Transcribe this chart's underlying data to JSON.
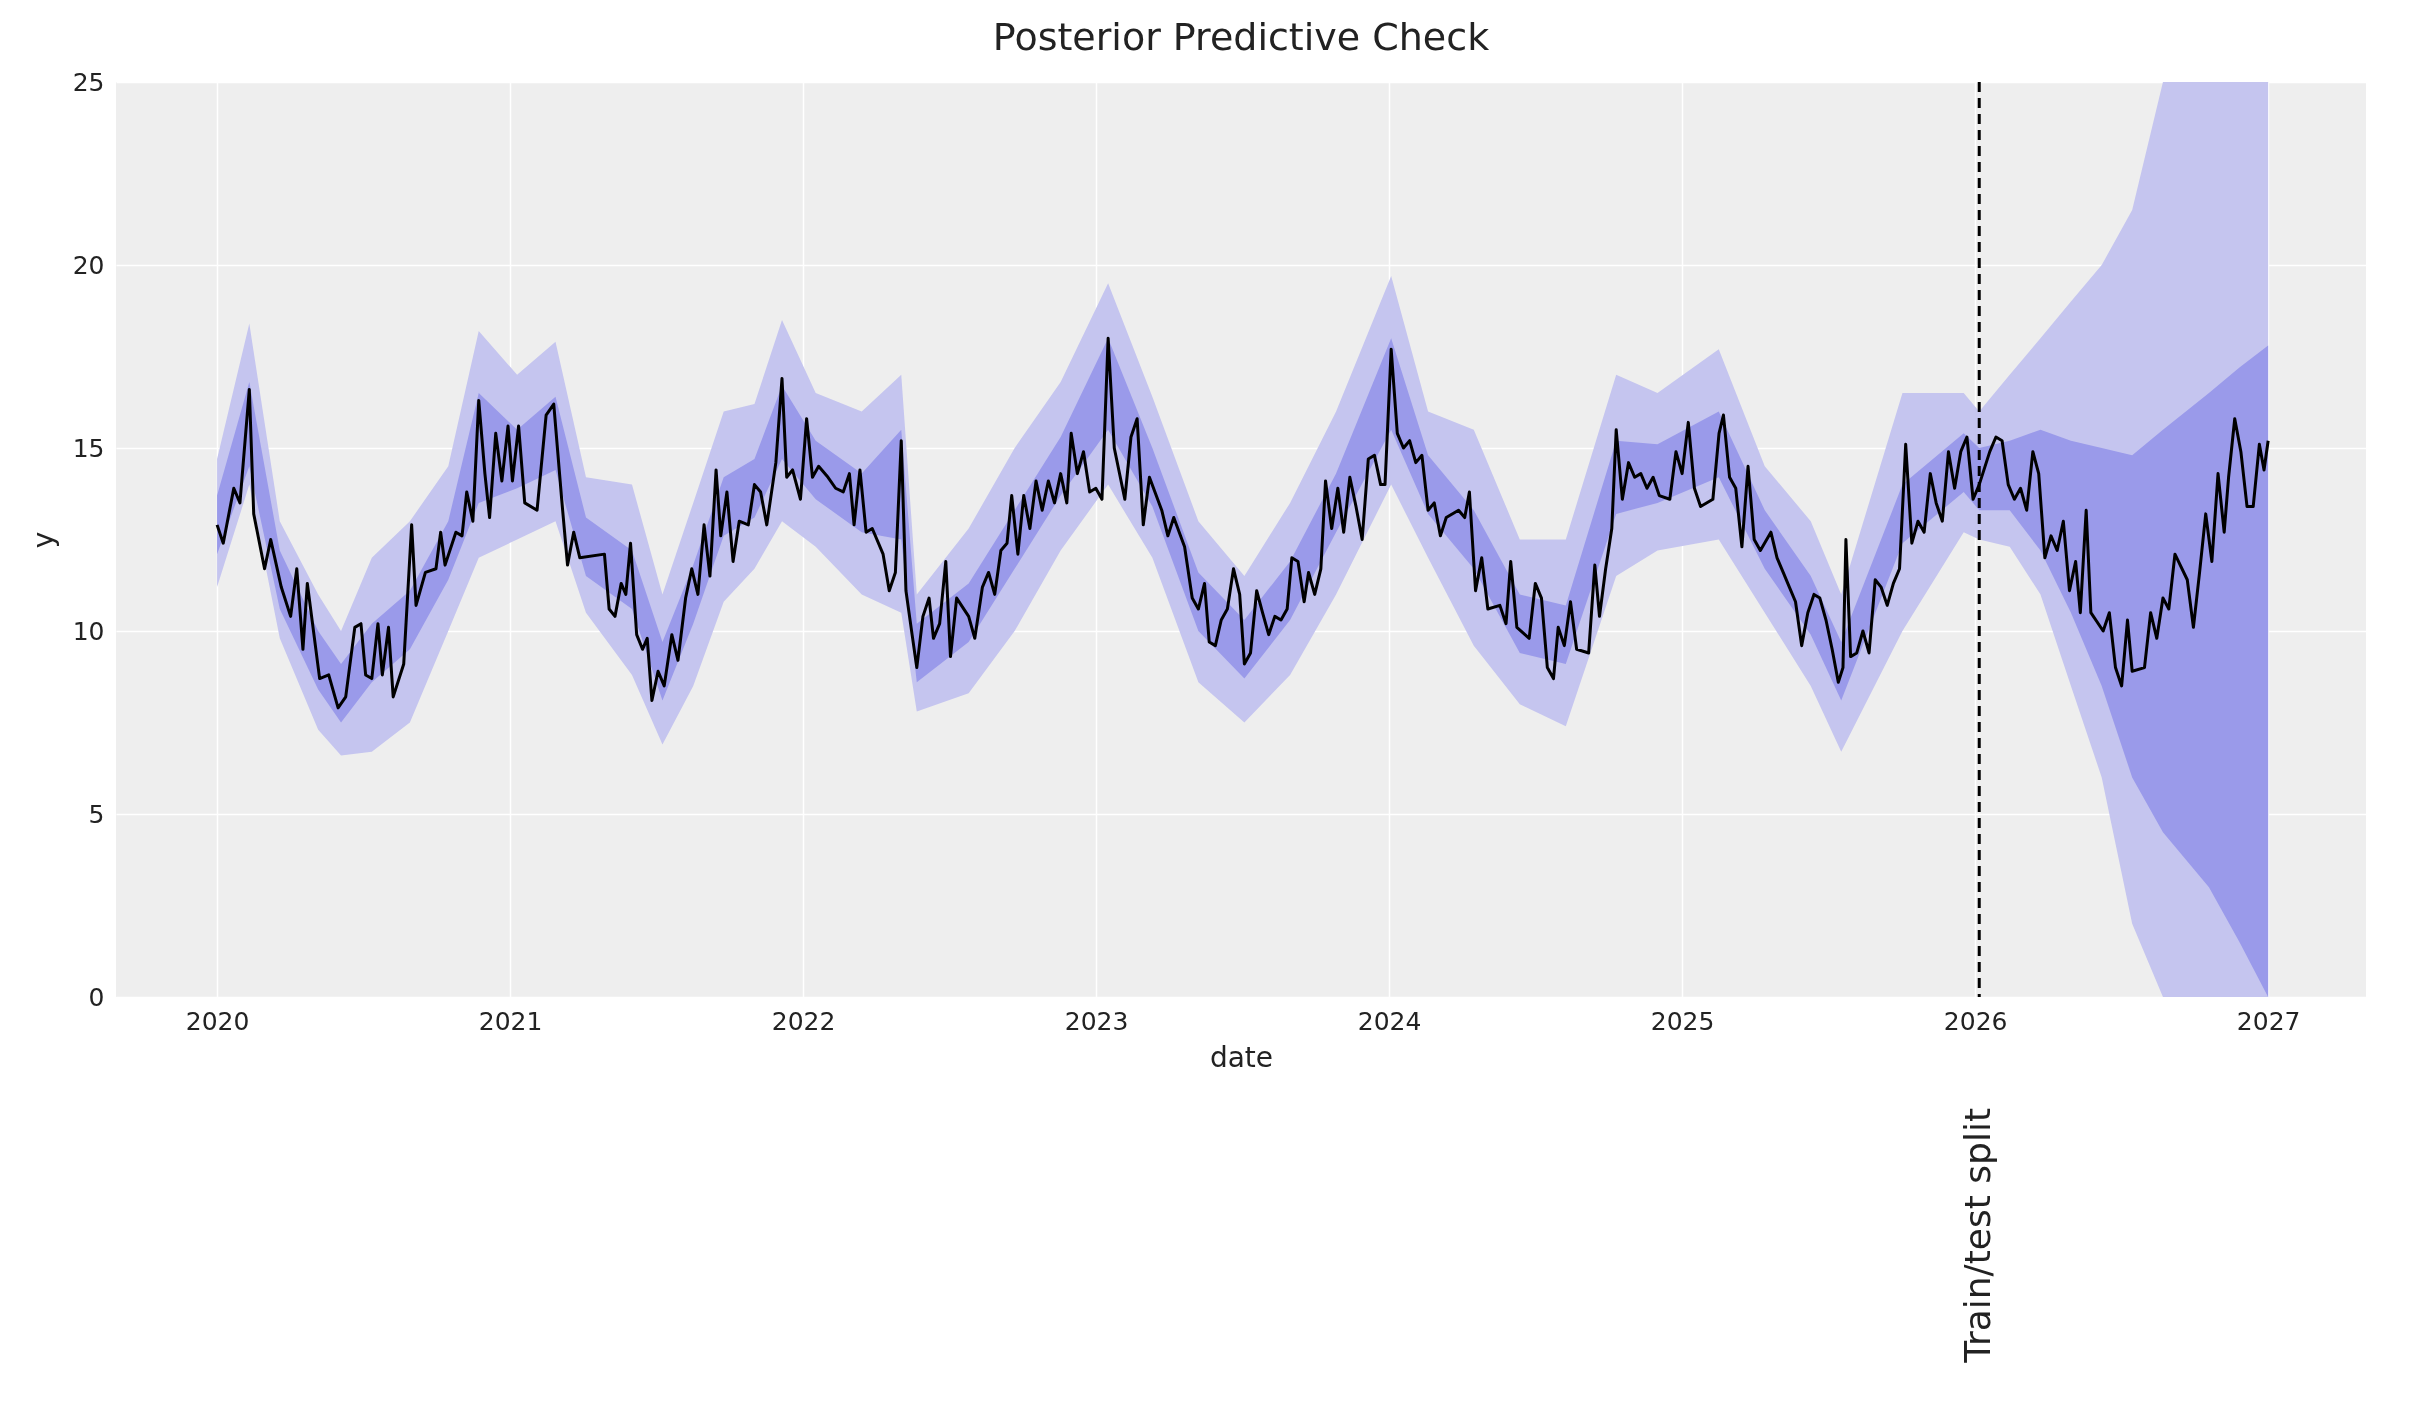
{
  "chart_data": {
    "type": "line",
    "title": "Posterior Predictive Check",
    "xlabel": "date",
    "ylabel": "y",
    "xlim": [
      2019.655,
      2027.334
    ],
    "ylim": [
      0,
      25
    ],
    "xticks": [
      2020,
      2021,
      2022,
      2023,
      2024,
      2025,
      2026,
      2027
    ],
    "yticks": [
      0,
      5,
      10,
      15,
      20,
      25
    ],
    "grid": true,
    "ref_lines": [
      {
        "axis": "x",
        "value": 2026.014,
        "label": "Train/test split",
        "color": "#000000",
        "line_style": "dashed"
      }
    ],
    "series": [
      {
        "type": "area",
        "color": "#c5c5ef",
        "x": [
          2020.0,
          2020.11,
          2020.214,
          2020.345,
          2020.423,
          2020.528,
          2020.658,
          2020.789,
          2020.893,
          2021.024,
          2021.155,
          2021.259,
          2021.416,
          2021.52,
          2021.625,
          2021.729,
          2021.834,
          2021.928,
          2022.043,
          2022.2,
          2022.335,
          2022.388,
          2022.565,
          2022.722,
          2022.879,
          2023.041,
          2023.192,
          2023.349,
          2023.506,
          2023.662,
          2023.819,
          2024.007,
          2024.133,
          2024.289,
          2024.446,
          2024.603,
          2024.775,
          2024.916,
          2025.125,
          2025.282,
          2025.439,
          2025.543,
          2025.752,
          2025.961,
          2026.014,
          2026.118,
          2026.223,
          2026.327,
          2026.432,
          2026.536,
          2026.641,
          2026.798,
          2026.902,
          2027.0
        ],
        "lower": [
          11.2,
          14.0,
          9.8,
          7.3,
          6.6,
          6.7,
          7.5,
          10.0,
          12.0,
          12.5,
          13.0,
          10.5,
          8.8,
          6.9,
          8.5,
          10.8,
          11.7,
          13.0,
          12.3,
          11.0,
          10.5,
          7.8,
          8.3,
          10.0,
          12.2,
          14.0,
          12.0,
          8.6,
          7.5,
          8.8,
          11.0,
          14.0,
          12.0,
          9.6,
          8.0,
          7.4,
          11.5,
          12.2,
          12.5,
          10.5,
          8.5,
          6.7,
          10.0,
          12.7,
          12.5,
          12.3,
          11.0,
          8.5,
          6.0,
          2.0,
          0,
          0,
          0,
          0
        ],
        "values": [
          null,
          null,
          null,
          null,
          null,
          null,
          null,
          null,
          null,
          null,
          null,
          null,
          null,
          null,
          null,
          null,
          null,
          null,
          null,
          null,
          null,
          null,
          null,
          null,
          null,
          null,
          null,
          null,
          null,
          null,
          null,
          null,
          null,
          null,
          null,
          null,
          null,
          null,
          null,
          null,
          null,
          null,
          null,
          null,
          null,
          null,
          null,
          null,
          null,
          null,
          null,
          null,
          null,
          null
        ],
        "upper": [
          14.7,
          18.4,
          13.0,
          11.0,
          10.0,
          12.0,
          13.0,
          14.5,
          18.2,
          17.0,
          17.9,
          14.2,
          14.0,
          11.0,
          13.5,
          16.0,
          16.2,
          18.5,
          16.5,
          16.0,
          17.0,
          11.0,
          12.8,
          15.0,
          16.8,
          19.5,
          16.4,
          13.0,
          11.5,
          13.5,
          16.0,
          19.7,
          16.0,
          15.5,
          12.5,
          12.5,
          17.0,
          16.5,
          17.7,
          14.5,
          13.0,
          11.0,
          16.5,
          16.5,
          16.0,
          17.0,
          18.0,
          19.0,
          20.0,
          21.5,
          25,
          25,
          25,
          25
        ]
      },
      {
        "type": "area",
        "color": "#9a9aea",
        "x": [
          2020.0,
          2020.11,
          2020.214,
          2020.345,
          2020.423,
          2020.528,
          2020.658,
          2020.789,
          2020.893,
          2021.024,
          2021.155,
          2021.259,
          2021.416,
          2021.52,
          2021.625,
          2021.729,
          2021.834,
          2021.928,
          2022.043,
          2022.2,
          2022.335,
          2022.388,
          2022.565,
          2022.722,
          2022.879,
          2023.041,
          2023.192,
          2023.349,
          2023.506,
          2023.662,
          2023.819,
          2024.007,
          2024.133,
          2024.289,
          2024.446,
          2024.603,
          2024.775,
          2024.916,
          2025.125,
          2025.282,
          2025.439,
          2025.543,
          2025.752,
          2025.961,
          2026.014,
          2026.118,
          2026.223,
          2026.327,
          2026.432,
          2026.536,
          2026.641,
          2026.798,
          2026.902,
          2027.0
        ],
        "lower": [
          12.1,
          14.5,
          10.6,
          8.4,
          7.5,
          8.6,
          9.5,
          11.4,
          13.5,
          13.9,
          14.4,
          11.5,
          10.6,
          8.1,
          10.2,
          12.6,
          13.1,
          14.7,
          13.6,
          12.7,
          12.5,
          8.6,
          9.7,
          11.7,
          13.7,
          15.5,
          13.4,
          10.0,
          8.7,
          10.3,
          12.7,
          15.5,
          13.2,
          11.7,
          9.4,
          9.1,
          13.2,
          13.5,
          14.2,
          11.7,
          9.9,
          8.1,
          12.4,
          13.8,
          13.3,
          13.3,
          12.2,
          10.5,
          8.5,
          6.0,
          4.5,
          3.0,
          1.5,
          0
        ],
        "values": [
          null,
          null,
          null,
          null,
          null,
          null,
          null,
          null,
          null,
          null,
          null,
          null,
          null,
          null,
          null,
          null,
          null,
          null,
          null,
          null,
          null,
          null,
          null,
          null,
          null,
          null,
          null,
          null,
          null,
          null,
          null,
          null,
          null,
          null,
          null,
          null,
          null,
          null,
          null,
          null,
          null,
          null,
          null,
          null,
          null,
          null,
          null,
          null,
          null,
          null,
          null,
          null,
          null,
          null
        ],
        "upper": [
          13.7,
          16.8,
          12.2,
          10.0,
          9.1,
          10.2,
          11.1,
          13.0,
          16.5,
          15.5,
          16.4,
          13.1,
          12.2,
          9.7,
          11.8,
          14.2,
          14.7,
          16.7,
          15.2,
          14.3,
          15.5,
          10.2,
          11.3,
          13.3,
          15.3,
          18.0,
          15.0,
          11.6,
          10.3,
          11.9,
          14.3,
          18.0,
          14.8,
          13.3,
          11.0,
          10.7,
          15.2,
          15.1,
          16.0,
          13.3,
          11.5,
          9.7,
          14.0,
          15.4,
          15.0,
          15.2,
          15.5,
          15.2,
          15.0,
          14.8,
          15.5,
          16.5,
          17.2,
          17.8
        ]
      },
      {
        "type": "line",
        "color": "#000000",
        "x": [
          2020.0,
          2020.021,
          2020.057,
          2020.078,
          2020.11,
          2020.125,
          2020.162,
          2020.183,
          2020.219,
          2020.251,
          2020.272,
          2020.293,
          2020.308,
          2020.35,
          2020.381,
          2020.413,
          2020.439,
          2020.47,
          2020.491,
          2020.507,
          2020.528,
          2020.549,
          2020.564,
          2020.585,
          2020.601,
          2020.637,
          2020.664,
          2020.679,
          2020.711,
          2020.747,
          2020.763,
          2020.778,
          2020.815,
          2020.836,
          2020.852,
          2020.873,
          2020.893,
          2020.914,
          2020.93,
          2020.951,
          2020.972,
          2020.993,
          2021.008,
          2021.029,
          2021.05,
          2021.092,
          2021.123,
          2021.149,
          2021.176,
          2021.196,
          2021.217,
          2021.238,
          2021.322,
          2021.338,
          2021.358,
          2021.379,
          2021.395,
          2021.411,
          2021.432,
          2021.452,
          2021.468,
          2021.484,
          2021.505,
          2021.526,
          2021.552,
          2021.573,
          2021.599,
          2021.62,
          2021.641,
          2021.662,
          2021.682,
          2021.703,
          2021.719,
          2021.74,
          2021.761,
          2021.782,
          2021.813,
          2021.834,
          2021.855,
          2021.876,
          2021.907,
          2021.928,
          2021.944,
          2021.964,
          2021.991,
          2022.012,
          2022.032,
          2022.053,
          2022.085,
          2022.111,
          2022.137,
          2022.158,
          2022.174,
          2022.194,
          2022.215,
          2022.236,
          2022.273,
          2022.294,
          2022.315,
          2022.335,
          2022.351,
          2022.372,
          2022.388,
          2022.409,
          2022.43,
          2022.445,
          2022.466,
          2022.487,
          2022.503,
          2022.524,
          2022.565,
          2022.586,
          2022.612,
          2022.633,
          2022.654,
          2022.675,
          2022.696,
          2022.712,
          2022.733,
          2022.753,
          2022.774,
          2022.795,
          2022.816,
          2022.837,
          2022.858,
          2022.879,
          2022.9,
          2022.915,
          2022.936,
          2022.957,
          2022.978,
          2022.999,
          2023.02,
          2023.041,
          2023.062,
          2023.098,
          2023.119,
          2023.14,
          2023.161,
          2023.182,
          2023.224,
          2023.245,
          2023.265,
          2023.302,
          2023.328,
          2023.349,
          2023.37,
          2023.386,
          2023.407,
          2023.427,
          2023.448,
          2023.469,
          2023.49,
          2023.506,
          2023.527,
          2023.548,
          2023.568,
          2023.589,
          2023.61,
          2023.631,
          2023.652,
          2023.668,
          2023.689,
          2023.71,
          2023.725,
          2023.746,
          2023.767,
          2023.783,
          2023.804,
          2023.825,
          2023.845,
          2023.866,
          2023.887,
          2023.908,
          2023.929,
          2023.95,
          2023.971,
          2023.986,
          2024.007,
          2024.028,
          2024.049,
          2024.07,
          2024.091,
          2024.112,
          2024.133,
          2024.154,
          2024.175,
          2024.195,
          2024.237,
          2024.258,
          2024.274,
          2024.295,
          2024.316,
          2024.337,
          2024.378,
          2024.399,
          2024.415,
          2024.436,
          2024.478,
          2024.499,
          2024.52,
          2024.54,
          2024.561,
          2024.577,
          2024.598,
          2024.619,
          2024.64,
          2024.681,
          2024.702,
          2024.718,
          2024.739,
          2024.76,
          2024.775,
          2024.796,
          2024.817,
          2024.838,
          2024.859,
          2024.88,
          2024.901,
          2024.922,
          2024.958,
          2024.979,
          2025.0,
          2025.021,
          2025.042,
          2025.063,
          2025.105,
          2025.126,
          2025.141,
          2025.162,
          2025.183,
          2025.204,
          2025.225,
          2025.246,
          2025.267,
          2025.303,
          2025.324,
          2025.345,
          2025.366,
          2025.387,
          2025.408,
          2025.429,
          2025.45,
          2025.47,
          2025.491,
          2025.512,
          2025.533,
          2025.549,
          2025.559,
          2025.575,
          2025.596,
          2025.617,
          2025.638,
          2025.659,
          2025.679,
          2025.7,
          2025.721,
          2025.742,
          2025.763,
          2025.784,
          2025.805,
          2025.826,
          2025.847,
          2025.867,
          2025.888,
          2025.909,
          2025.93,
          2025.951,
          2025.972,
          2025.993,
          2026.014,
          2026.05,
          2026.071,
          2026.092,
          2026.113,
          2026.134,
          2026.155,
          2026.176,
          2026.197,
          2026.217,
          2026.238,
          2026.259,
          2026.28,
          2026.301,
          2026.322,
          2026.343,
          2026.359,
          2026.379,
          2026.395,
          2026.437,
          2026.458,
          2026.479,
          2026.5,
          2026.52,
          2026.536,
          2026.578,
          2026.599,
          2026.62,
          2026.641,
          2026.661,
          2026.682,
          2026.724,
          2026.745,
          2026.766,
          2026.787,
          2026.808,
          2026.829,
          2026.85,
          2026.865,
          2026.886,
          2026.907,
          2026.928,
          2026.949,
          2026.97,
          2026.986,
          2027.0
        ],
        "values": [
          12.9,
          12.4,
          13.9,
          13.5,
          16.6,
          13.2,
          11.7,
          12.5,
          11.2,
          10.4,
          11.7,
          9.5,
          11.3,
          8.7,
          8.8,
          7.9,
          8.2,
          10.1,
          10.2,
          8.8,
          8.7,
          10.2,
          8.8,
          10.1,
          8.2,
          9.1,
          12.9,
          10.7,
          11.6,
          11.7,
          12.7,
          11.8,
          12.7,
          12.6,
          13.8,
          13.0,
          16.3,
          14.3,
          13.1,
          15.4,
          14.1,
          15.6,
          14.1,
          15.6,
          13.5,
          13.3,
          15.9,
          16.2,
          13.6,
          11.8,
          12.7,
          12.0,
          12.1,
          10.6,
          10.4,
          11.3,
          11.0,
          12.4,
          9.9,
          9.5,
          9.8,
          8.1,
          8.9,
          8.5,
          9.9,
          9.2,
          10.9,
          11.7,
          11.0,
          12.9,
          11.5,
          14.4,
          12.6,
          13.8,
          11.9,
          13.0,
          12.9,
          14.0,
          13.8,
          12.9,
          14.6,
          16.9,
          14.2,
          14.4,
          13.6,
          15.8,
          14.2,
          14.5,
          14.2,
          13.9,
          13.8,
          14.3,
          12.9,
          14.4,
          12.7,
          12.8,
          12.1,
          11.1,
          11.6,
          15.2,
          11.1,
          9.9,
          9.0,
          10.4,
          10.9,
          9.8,
          10.2,
          11.9,
          9.3,
          10.9,
          10.4,
          9.8,
          11.2,
          11.6,
          11.0,
          12.2,
          12.4,
          13.7,
          12.1,
          13.7,
          12.8,
          14.1,
          13.3,
          14.1,
          13.5,
          14.3,
          13.5,
          15.4,
          14.3,
          14.9,
          13.8,
          13.9,
          13.6,
          18.0,
          15.0,
          13.6,
          15.3,
          15.8,
          12.9,
          14.2,
          13.3,
          12.6,
          13.1,
          12.3,
          10.9,
          10.6,
          11.3,
          9.7,
          9.6,
          10.3,
          10.6,
          11.7,
          11.0,
          9.1,
          9.4,
          11.1,
          10.5,
          9.9,
          10.4,
          10.3,
          10.6,
          12.0,
          11.9,
          10.8,
          11.6,
          11.0,
          11.7,
          14.1,
          12.8,
          13.9,
          12.7,
          14.2,
          13.4,
          12.5,
          14.7,
          14.8,
          14.0,
          14.0,
          17.7,
          15.4,
          15.0,
          15.2,
          14.6,
          14.8,
          13.3,
          13.5,
          12.6,
          13.1,
          13.3,
          13.1,
          13.8,
          11.1,
          12.0,
          10.6,
          10.7,
          10.2,
          11.9,
          10.1,
          9.8,
          11.3,
          10.9,
          9.0,
          8.7,
          10.1,
          9.6,
          10.8,
          9.5,
          9.4,
          11.8,
          10.4,
          11.7,
          12.8,
          15.5,
          13.6,
          14.6,
          14.2,
          14.3,
          13.9,
          14.2,
          13.7,
          13.6,
          14.9,
          14.3,
          15.7,
          13.9,
          13.4,
          13.6,
          15.4,
          15.9,
          14.2,
          13.9,
          12.3,
          14.5,
          12.5,
          12.2,
          12.7,
          12.0,
          11.6,
          11.2,
          10.8,
          9.6,
          10.5,
          11.0,
          10.9,
          10.3,
          9.5,
          8.6,
          9.0,
          12.5,
          9.3,
          9.4,
          10.0,
          9.4,
          11.4,
          11.2,
          10.7,
          11.3,
          11.7,
          15.1,
          12.4,
          13.0,
          12.7,
          14.3,
          13.5,
          13.0,
          14.9,
          13.9,
          14.9,
          15.3,
          13.6,
          14.0,
          14.9,
          15.3,
          15.2,
          14.0,
          13.6,
          13.9,
          13.3,
          14.9,
          14.3,
          12.0,
          12.6,
          12.2,
          13.0,
          11.1,
          11.9,
          10.5,
          13.3,
          10.5,
          10.0,
          10.5,
          9.0,
          8.5,
          10.3,
          8.9,
          9.0,
          10.5,
          9.8,
          10.9,
          10.6,
          12.1,
          11.4,
          10.1,
          11.6,
          13.2,
          11.9,
          14.3,
          12.7,
          14.2,
          15.8,
          14.9,
          13.4,
          13.4,
          15.1,
          14.4,
          15.2
        ]
      }
    ]
  }
}
